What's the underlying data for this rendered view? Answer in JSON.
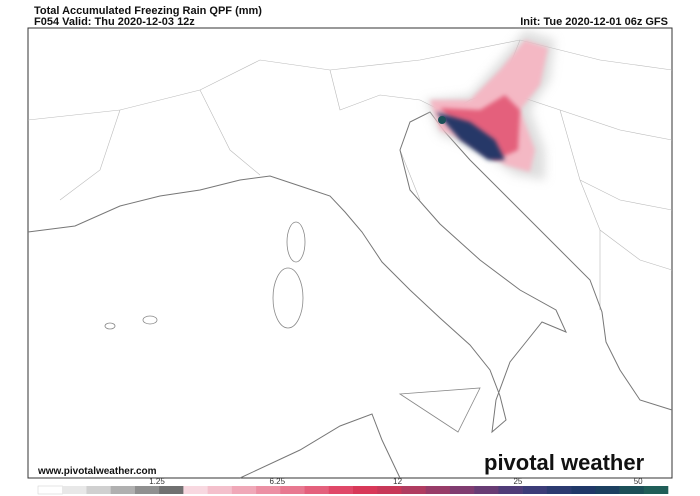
{
  "header": {
    "title": "Total Accumulated Freezing Rain QPF (mm)",
    "valid": "F054 Valid: Thu 2020-12-03 12z",
    "init": "Init: Tue 2020-12-01 06z GFS"
  },
  "footer": {
    "website": "www.pivotalweather.com",
    "brand": "pivotal weather"
  },
  "colorbar": {
    "ticks": [
      1.25,
      6.25,
      12,
      25,
      50
    ],
    "colors": [
      "#ffffff",
      "#e8e8e8",
      "#d0d0d0",
      "#b0b0b0",
      "#909090",
      "#707070",
      "#f8d8e0",
      "#f4c0cc",
      "#f0a8b8",
      "#ec90a4",
      "#e87890",
      "#e4607c",
      "#e04868",
      "#d83858",
      "#c83858",
      "#b03c60",
      "#983c68",
      "#803c70",
      "#683c74",
      "#503c78",
      "#3c3c78",
      "#2c3a70",
      "#203868",
      "#1c4060",
      "#1c5058",
      "#205e58"
    ]
  }
}
